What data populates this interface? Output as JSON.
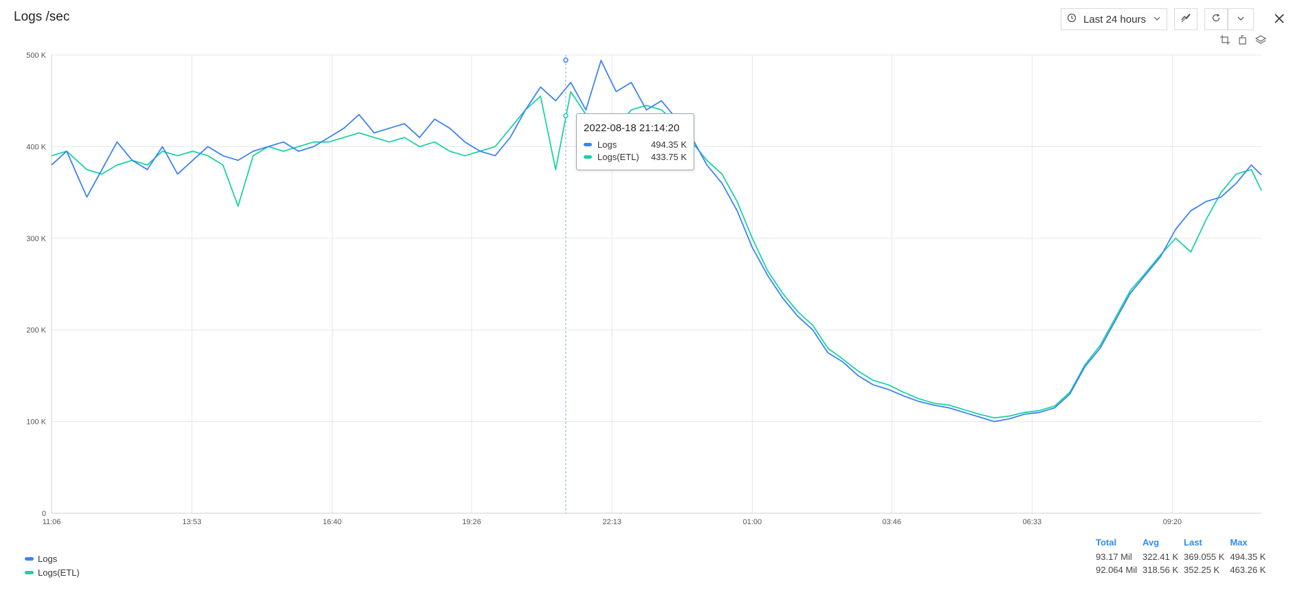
{
  "panel": {
    "title": "Logs /sec"
  },
  "toolbar": {
    "time_range_label": "Last 24 hours",
    "icons": [
      "clock-icon",
      "chevron-down-icon",
      "anomaly-icon",
      "refresh-icon",
      "chevron-down-icon",
      "close-icon"
    ],
    "mini_icons": [
      "crop-icon",
      "crop-alt-icon",
      "layers-icon"
    ]
  },
  "tooltip": {
    "time": "2022-08-18 21:14:20",
    "rows": [
      {
        "name": "Logs",
        "value": "494.35 K"
      },
      {
        "name": "Logs(ETL)",
        "value": "433.75 K"
      }
    ]
  },
  "stats": {
    "headers": [
      "Total",
      "Avg",
      "Last",
      "Max"
    ],
    "rows": [
      {
        "series": "Logs",
        "total": "93.17 Mil",
        "avg": "322.41 K",
        "last": "369.055 K",
        "max": "494.35 K"
      },
      {
        "series": "Logs(ETL)",
        "total": "92.064 Mil",
        "avg": "318.56 K",
        "last": "352.25 K",
        "max": "463.26 K"
      }
    ]
  },
  "colors": {
    "logs": "#3b82f6",
    "etl": "#19d3a2",
    "grid": "#e6e6e6",
    "accent": "#2f8ce8"
  },
  "chart_data": {
    "type": "line",
    "title": "Logs /sec",
    "ylim": [
      0,
      500
    ],
    "y_unit": "K",
    "y_ticks": [
      "0",
      "100 K",
      "200 K",
      "300 K",
      "400 K",
      "500 K"
    ],
    "x_ticks": [
      "11:06",
      "13:53",
      "16:40",
      "19:26",
      "22:13",
      "01:00",
      "03:46",
      "06:33",
      "09:20"
    ],
    "x_range_hours": [
      0,
      24
    ],
    "x_tick_hours": [
      0,
      2.783,
      5.567,
      8.333,
      11.117,
      13.9,
      16.667,
      19.45,
      22.233
    ],
    "grid": true,
    "legend_placement": "bottom-left",
    "series": [
      {
        "name": "Logs",
        "color": "#3b82f6",
        "x": [
          0,
          0.3,
          0.7,
          1.0,
          1.3,
          1.6,
          1.9,
          2.2,
          2.5,
          2.8,
          3.1,
          3.4,
          3.7,
          4.0,
          4.3,
          4.6,
          4.9,
          5.2,
          5.5,
          5.8,
          6.1,
          6.4,
          6.7,
          7.0,
          7.3,
          7.6,
          7.9,
          8.2,
          8.5,
          8.8,
          9.1,
          9.4,
          9.7,
          10.0,
          10.3,
          10.6,
          10.9,
          11.2,
          11.5,
          11.8,
          12.1,
          12.4,
          12.7,
          13.0,
          13.3,
          13.6,
          13.9,
          14.2,
          14.5,
          14.8,
          15.1,
          15.4,
          15.7,
          16.0,
          16.3,
          16.6,
          16.9,
          17.2,
          17.5,
          17.8,
          18.1,
          18.4,
          18.7,
          19.0,
          19.3,
          19.6,
          19.9,
          20.2,
          20.5,
          20.8,
          21.1,
          21.4,
          21.7,
          22.0,
          22.3,
          22.6,
          22.9,
          23.2,
          23.5,
          23.8,
          24.0
        ],
        "values": [
          380,
          395,
          345,
          375,
          405,
          385,
          375,
          400,
          370,
          385,
          400,
          390,
          385,
          395,
          400,
          405,
          395,
          400,
          410,
          420,
          435,
          415,
          420,
          425,
          410,
          430,
          420,
          405,
          395,
          390,
          410,
          440,
          465,
          450,
          470,
          440,
          494,
          460,
          470,
          440,
          450,
          430,
          410,
          380,
          360,
          330,
          290,
          260,
          235,
          215,
          200,
          175,
          165,
          150,
          140,
          135,
          128,
          122,
          118,
          115,
          110,
          105,
          100,
          103,
          108,
          110,
          115,
          130,
          160,
          180,
          210,
          240,
          260,
          280,
          310,
          330,
          340,
          345,
          360,
          380,
          369
        ]
      },
      {
        "name": "Logs(ETL)",
        "color": "#19d3a2",
        "x": [
          0,
          0.3,
          0.7,
          1.0,
          1.3,
          1.6,
          1.9,
          2.2,
          2.5,
          2.8,
          3.1,
          3.4,
          3.7,
          4.0,
          4.3,
          4.6,
          4.9,
          5.2,
          5.5,
          5.8,
          6.1,
          6.4,
          6.7,
          7.0,
          7.3,
          7.6,
          7.9,
          8.2,
          8.5,
          8.8,
          9.1,
          9.4,
          9.7,
          10.0,
          10.3,
          10.6,
          10.9,
          11.2,
          11.5,
          11.8,
          12.1,
          12.4,
          12.7,
          13.0,
          13.3,
          13.6,
          13.9,
          14.2,
          14.5,
          14.8,
          15.1,
          15.4,
          15.7,
          16.0,
          16.3,
          16.6,
          16.9,
          17.2,
          17.5,
          17.8,
          18.1,
          18.4,
          18.7,
          19.0,
          19.3,
          19.6,
          19.9,
          20.2,
          20.5,
          20.8,
          21.1,
          21.4,
          21.7,
          22.0,
          22.3,
          22.6,
          22.9,
          23.2,
          23.5,
          23.8,
          24.0
        ],
        "values": [
          390,
          395,
          375,
          370,
          380,
          385,
          380,
          395,
          390,
          395,
          390,
          380,
          335,
          390,
          400,
          395,
          400,
          405,
          405,
          410,
          415,
          410,
          405,
          410,
          400,
          405,
          395,
          390,
          395,
          400,
          420,
          440,
          455,
          375,
          460,
          435,
          434,
          420,
          440,
          445,
          440,
          425,
          405,
          385,
          370,
          340,
          300,
          265,
          240,
          220,
          205,
          180,
          168,
          155,
          145,
          140,
          132,
          125,
          120,
          118,
          113,
          108,
          104,
          106,
          110,
          112,
          117,
          132,
          162,
          183,
          213,
          243,
          262,
          282,
          300,
          285,
          320,
          350,
          370,
          375,
          352
        ]
      }
    ]
  }
}
